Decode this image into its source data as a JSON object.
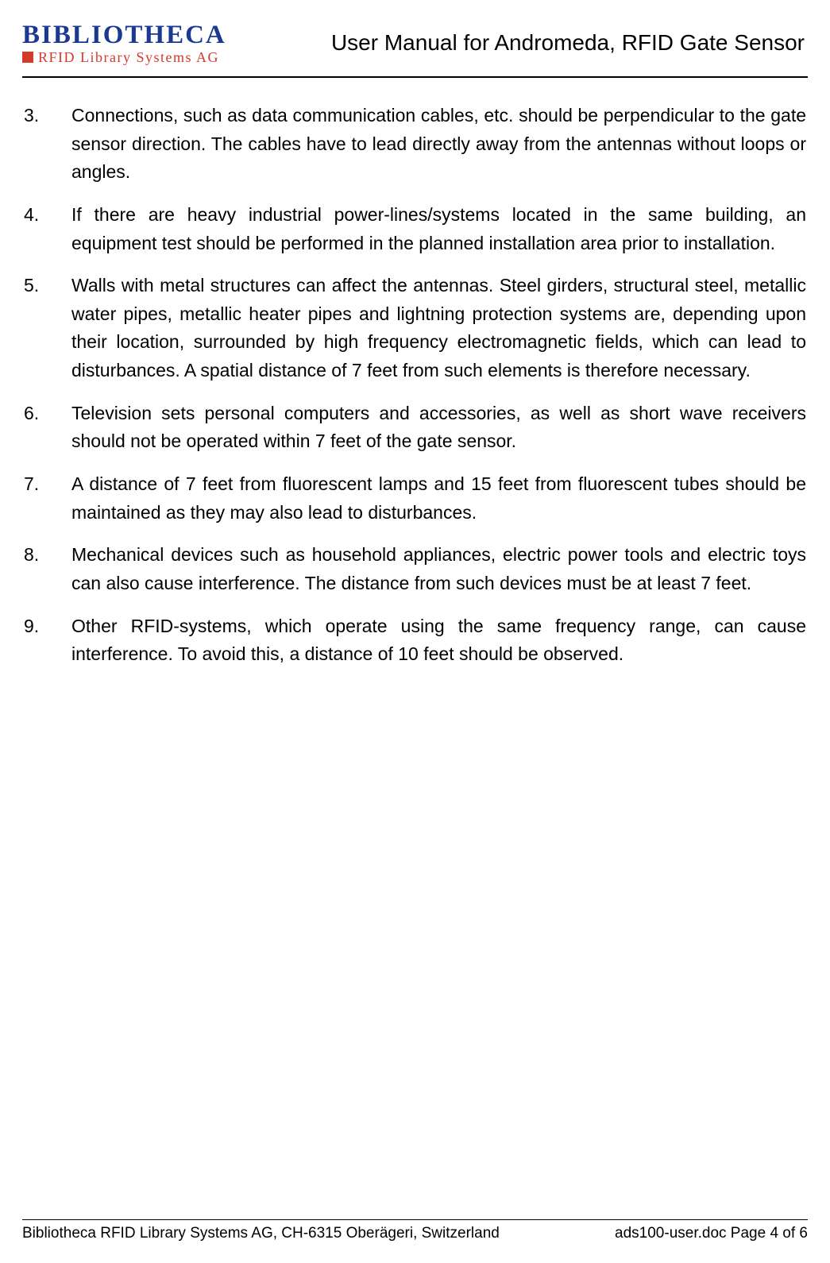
{
  "header": {
    "logo_top": "BIBLIOTHECA",
    "logo_sub": "RFID Library Systems AG",
    "doc_title": "User Manual for Andromeda, RFID Gate Sensor"
  },
  "items": [
    {
      "n": "3.",
      "t": "Connections, such as data communication cables, etc. should be perpen­dicular to the gate sensor direction. The cables have to lead directly away from the antennas without loops or angles."
    },
    {
      "n": "4.",
      "t": "If there are heavy industrial power-lines/systems located in the same building, an equipment test should be performed in the planned installation area prior to installation."
    },
    {
      "n": "5.",
      "t": "Walls with metal structures can affect the antennas. Steel girders, struc­tural steel, metallic water pipes, metallic heater pipes and lightning protec­tion systems are, depending upon their location, surrounded by high fre­quency electromagnetic fields, which can lead to disturbances. A spatial distance of 7 feet from such elements is therefore necessary."
    },
    {
      "n": "6.",
      "t": "Television sets personal computers and accessories, as well as short wave receivers should not be operated within 7 feet of the gate sensor."
    },
    {
      "n": "7.",
      "t": "A distance of 7 feet from fluorescent lamps and 15 feet from fluorescent tubes should be maintained as they may also lead to disturbances."
    },
    {
      "n": "8.",
      "t": "Mechanical devices such as household appliances, electric power tools and electric toys can also cause interference. The distance from such devices must be at least 7 feet."
    },
    {
      "n": "9.",
      "t": "Other RFID-systems, which operate using the same frequency range, can cause interference. To avoid this, a distance of 10 feet should be observed."
    }
  ],
  "footer": {
    "left": "Bibliotheca RFID Library Systems AG, CH-6315 Oberägeri, Switzerland",
    "right": "ads100-user.doc  Page 4 of 6"
  }
}
